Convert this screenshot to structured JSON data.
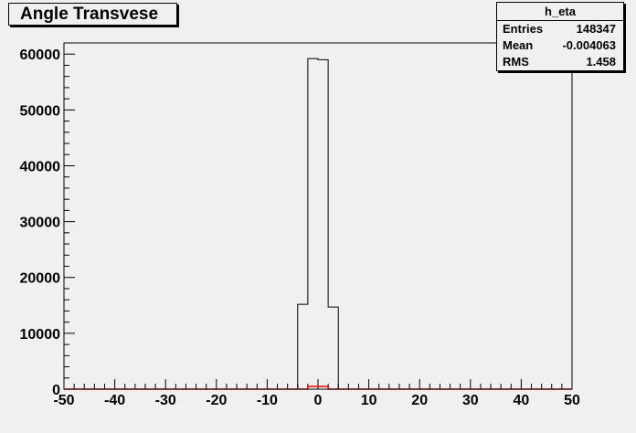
{
  "title": "Angle Transvese",
  "stats": {
    "name": "h_eta",
    "rows": [
      {
        "key": "Entries",
        "value": "148347"
      },
      {
        "key": "Mean",
        "value": "-0.004063"
      },
      {
        "key": "RMS",
        "value": "1.458"
      }
    ]
  },
  "colors": {
    "background": "#f0f0f0",
    "frame": "#000000",
    "histogram": "#000000",
    "secondary": "#ff0000"
  },
  "chart_data": {
    "type": "histogram",
    "title": "Angle Transvese",
    "xlabel": "",
    "ylabel": "",
    "xlim": [
      -50,
      50
    ],
    "ylim": [
      0,
      62000
    ],
    "x_ticks": [
      -50,
      -40,
      -30,
      -20,
      -10,
      0,
      10,
      20,
      30,
      40,
      50
    ],
    "y_ticks": [
      0,
      10000,
      20000,
      30000,
      40000,
      50000,
      60000
    ],
    "x_tick_labels": [
      "-50",
      "-40",
      "-30",
      "-20",
      "-10",
      "0",
      "10",
      "20",
      "30",
      "40",
      "50"
    ],
    "y_tick_labels": [
      "0",
      "10000",
      "20000",
      "30000",
      "40000",
      "50000",
      "60000"
    ],
    "series": [
      {
        "bins": [
          {
            "x0": -4,
            "x1": -2,
            "value": 15200
          },
          {
            "x0": -2,
            "x1": 0,
            "value": 59200
          },
          {
            "x0": 0,
            "x1": 2,
            "value": 59000
          },
          {
            "x0": 2,
            "x1": 4,
            "value": 14700
          }
        ]
      },
      {
        "bins": [
          {
            "x0": -50,
            "x1": -2,
            "value": 0
          },
          {
            "x0": -2,
            "x1": 2,
            "value": 500
          },
          {
            "x0": 2,
            "x1": 50,
            "value": 0
          }
        ]
      }
    ]
  }
}
